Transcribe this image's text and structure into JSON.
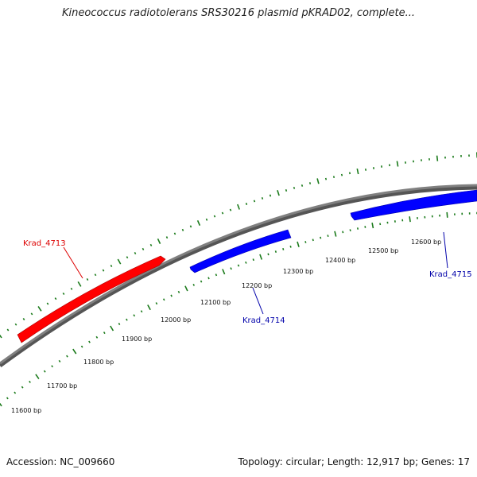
{
  "title": "Kineococcus radiotolerans SRS30216 plasmid pKRAD02, complete...",
  "footer": {
    "accession": "Accession: NC_009660",
    "summary": "Topology: circular; Length: 12,917 bp; Genes: 17"
  },
  "colors": {
    "backbone": "#808080",
    "ticks": "#1a7a1a",
    "forward_gene": "#0000ff",
    "reverse_gene": "#ff0000",
    "forward_label": "#0000aa",
    "reverse_label": "#dd0000"
  },
  "scale": {
    "unit": "bp",
    "labels": [
      "11600 bp",
      "11700 bp",
      "11800 bp",
      "11900 bp",
      "12000 bp",
      "12100 bp",
      "12200 bp",
      "12300 bp",
      "12400 bp",
      "12500 bp",
      "12600 bp"
    ]
  },
  "genes": [
    {
      "name": "Krad_4713",
      "strand": "reverse"
    },
    {
      "name": "Krad_4714",
      "strand": "forward"
    },
    {
      "name": "Krad_4715",
      "strand": "forward"
    }
  ]
}
